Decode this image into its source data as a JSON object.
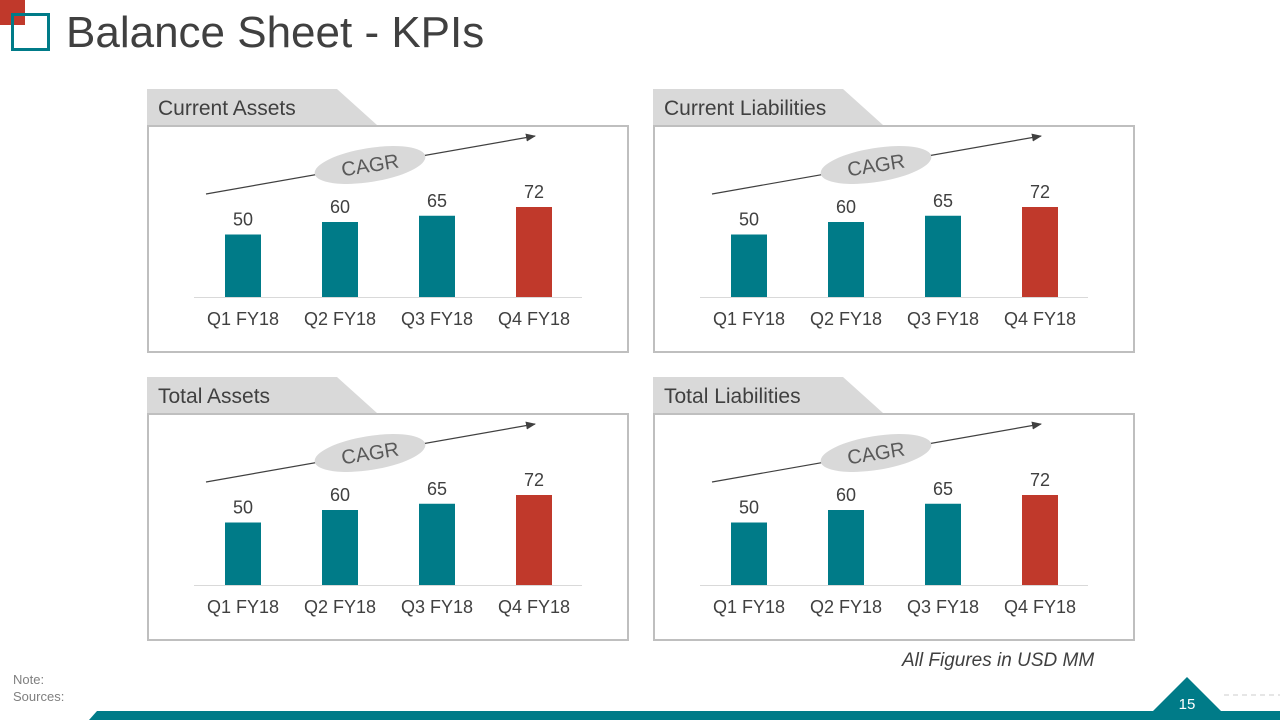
{
  "title": "Balance Sheet - KPIs",
  "colors": {
    "teal": "#007b88",
    "red": "#c0392b",
    "tab_gray": "#d9d9d9",
    "border_gray": "#bfbfbf"
  },
  "chart_data": [
    {
      "type": "bar",
      "title": "Current Assets",
      "categories": [
        "Q1 FY18",
        "Q2 FY18",
        "Q3 FY18",
        "Q4 FY18"
      ],
      "values": [
        50,
        60,
        65,
        72
      ],
      "ylim": [
        0,
        80
      ],
      "annotation": "CAGR",
      "highlight_index": 3
    },
    {
      "type": "bar",
      "title": "Current Liabilities",
      "categories": [
        "Q1 FY18",
        "Q2 FY18",
        "Q3 FY18",
        "Q4 FY18"
      ],
      "values": [
        50,
        60,
        65,
        72
      ],
      "ylim": [
        0,
        80
      ],
      "annotation": "CAGR",
      "highlight_index": 3
    },
    {
      "type": "bar",
      "title": "Total Assets",
      "categories": [
        "Q1 FY18",
        "Q2 FY18",
        "Q3 FY18",
        "Q4 FY18"
      ],
      "values": [
        50,
        60,
        65,
        72
      ],
      "ylim": [
        0,
        80
      ],
      "annotation": "CAGR",
      "highlight_index": 3
    },
    {
      "type": "bar",
      "title": "Total Liabilities",
      "categories": [
        "Q1 FY18",
        "Q2 FY18",
        "Q3 FY18",
        "Q4 FY18"
      ],
      "values": [
        50,
        60,
        65,
        72
      ],
      "ylim": [
        0,
        80
      ],
      "annotation": "CAGR",
      "highlight_index": 3
    }
  ],
  "footer": {
    "note": "Note:",
    "sources": "Sources:",
    "units": "All Figures in USD MM",
    "page_number": "15"
  }
}
